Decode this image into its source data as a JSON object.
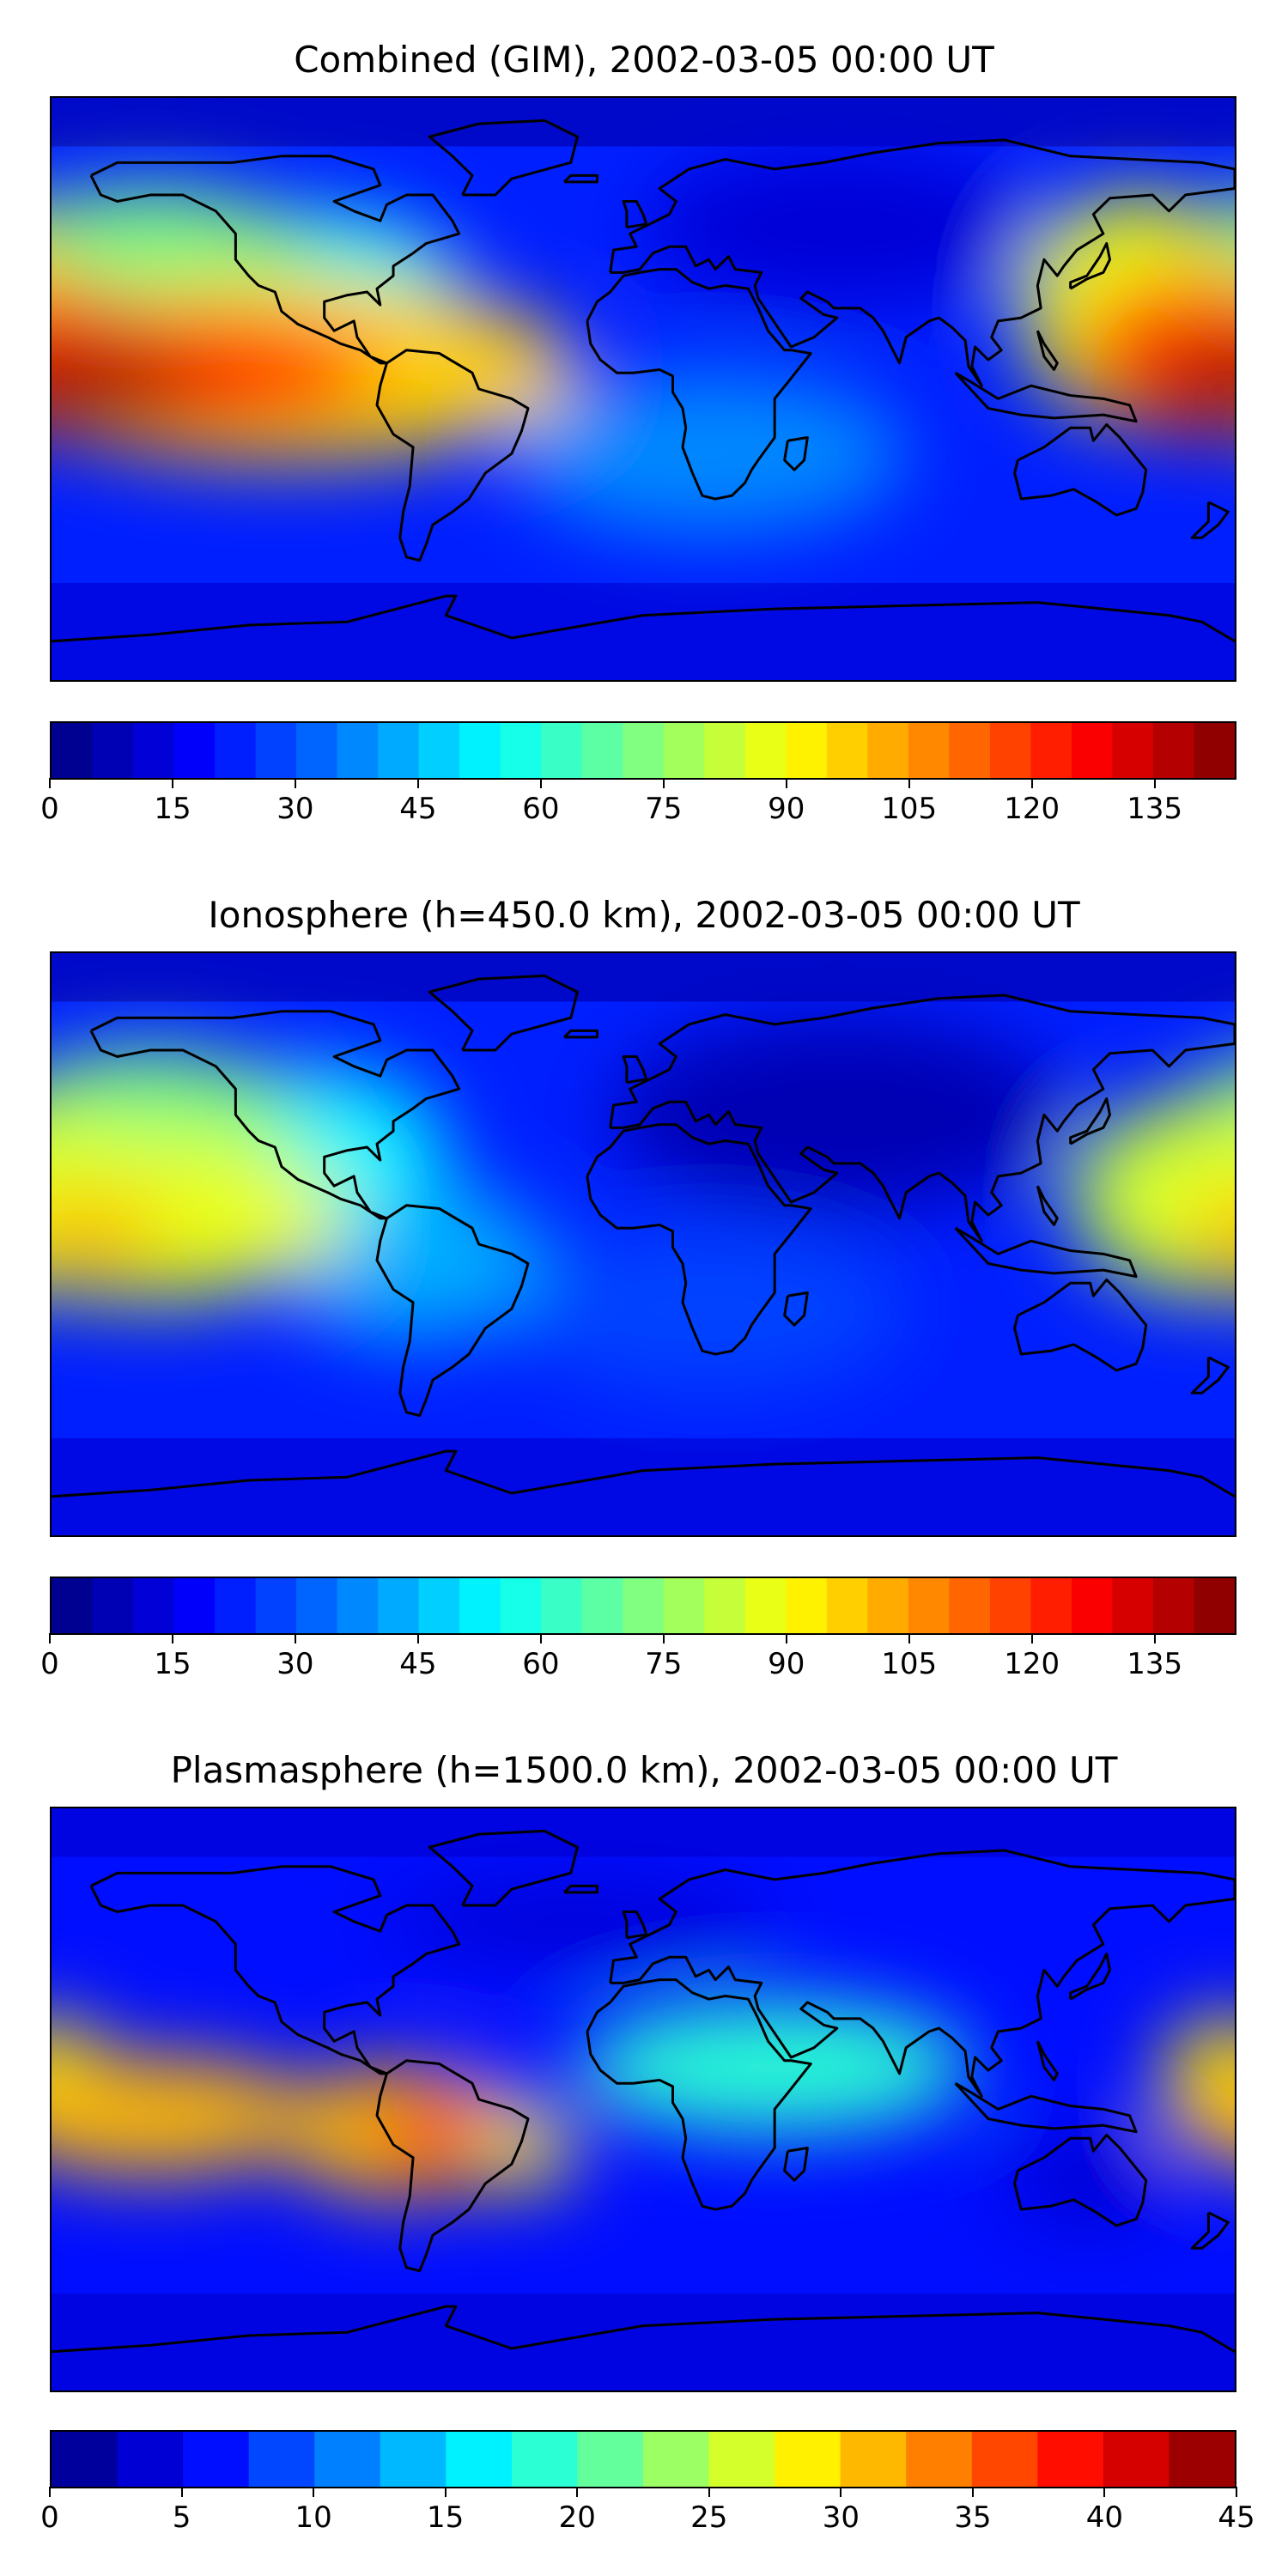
{
  "panels": [
    {
      "id": "combined",
      "title": "Combined (GIM), 2002-03-05 00:00 UT",
      "colorbar": {
        "min": 0,
        "max": 145,
        "levels": 29,
        "ticks": [
          "0",
          "15",
          "30",
          "45",
          "60",
          "75",
          "90",
          "105",
          "120",
          "135"
        ],
        "tick_values": [
          0,
          15,
          30,
          45,
          60,
          75,
          90,
          105,
          120,
          135
        ]
      },
      "field_blobs": [
        {
          "lon": -170,
          "lat": 3,
          "value": 140,
          "rx": 35,
          "ry": 10
        },
        {
          "lon": -150,
          "lat": 5,
          "value": 120,
          "rx": 70,
          "ry": 18
        },
        {
          "lon": -110,
          "lat": 6,
          "value": 95,
          "rx": 90,
          "ry": 28
        },
        {
          "lon": -150,
          "lat": 40,
          "value": 70,
          "rx": 50,
          "ry": 22
        },
        {
          "lon": 170,
          "lat": 12,
          "value": 110,
          "rx": 40,
          "ry": 25
        },
        {
          "lon": 150,
          "lat": 25,
          "value": 85,
          "rx": 35,
          "ry": 35
        },
        {
          "lon": -60,
          "lat": 5,
          "value": 55,
          "rx": 40,
          "ry": 20
        },
        {
          "lon": -100,
          "lat": 30,
          "value": 55,
          "rx": 45,
          "ry": 25
        },
        {
          "lon": 20,
          "lat": -20,
          "value": 35,
          "rx": 60,
          "ry": 25
        },
        {
          "lon": 60,
          "lat": 50,
          "value": 10,
          "rx": 60,
          "ry": 25
        }
      ]
    },
    {
      "id": "ionosphere",
      "title": "Ionosphere  (h=450.0 km), 2002-03-05 00:00 UT",
      "colorbar": {
        "min": 0,
        "max": 145,
        "levels": 29,
        "ticks": [
          "0",
          "15",
          "30",
          "45",
          "60",
          "75",
          "90",
          "105",
          "120",
          "135"
        ],
        "tick_values": [
          0,
          15,
          30,
          45,
          60,
          75,
          90,
          105,
          120,
          135
        ]
      },
      "field_blobs": [
        {
          "lon": -170,
          "lat": 3,
          "value": 100,
          "rx": 25,
          "ry": 10
        },
        {
          "lon": -150,
          "lat": 8,
          "value": 85,
          "rx": 60,
          "ry": 25
        },
        {
          "lon": -150,
          "lat": 40,
          "value": 70,
          "rx": 45,
          "ry": 20
        },
        {
          "lon": 170,
          "lat": 15,
          "value": 80,
          "rx": 40,
          "ry": 30
        },
        {
          "lon": -100,
          "lat": 30,
          "value": 50,
          "rx": 40,
          "ry": 25
        },
        {
          "lon": -70,
          "lat": -5,
          "value": 40,
          "rx": 40,
          "ry": 25
        },
        {
          "lon": 20,
          "lat": -20,
          "value": 25,
          "rx": 60,
          "ry": 25
        },
        {
          "lon": 60,
          "lat": 40,
          "value": 8,
          "rx": 70,
          "ry": 30
        }
      ]
    },
    {
      "id": "plasmasphere",
      "title": "Plasmasphere (h=1500.0 km), 2002-03-05 00:00 UT",
      "colorbar": {
        "min": 0,
        "max": 45,
        "levels": 18,
        "ticks": [
          "0",
          "5",
          "10",
          "15",
          "20",
          "25",
          "30",
          "35",
          "40",
          "45"
        ],
        "tick_values": [
          0,
          5,
          10,
          15,
          20,
          25,
          30,
          35,
          40,
          45
        ]
      },
      "field_blobs": [
        {
          "lon": -65,
          "lat": -10,
          "value": 39,
          "rx": 15,
          "ry": 12
        },
        {
          "lon": -75,
          "lat": -10,
          "value": 32,
          "rx": 35,
          "ry": 20
        },
        {
          "lon": -150,
          "lat": -5,
          "value": 30,
          "rx": 50,
          "ry": 18
        },
        {
          "lon": -40,
          "lat": -15,
          "value": 28,
          "rx": 20,
          "ry": 12
        },
        {
          "lon": 178,
          "lat": 5,
          "value": 28,
          "rx": 20,
          "ry": 20
        },
        {
          "lon": 40,
          "lat": 10,
          "value": 18,
          "rx": 60,
          "ry": 20
        },
        {
          "lon": 135,
          "lat": -25,
          "value": 3,
          "rx": 25,
          "ry": 15
        },
        {
          "lon": -20,
          "lat": 55,
          "value": 4,
          "rx": 60,
          "ry": 12
        },
        {
          "lon": -45,
          "lat": 2,
          "value": 5,
          "rx": 10,
          "ry": 8
        }
      ]
    }
  ],
  "map_extent": {
    "lon": [
      -180,
      180
    ],
    "lat": [
      -90,
      90
    ]
  },
  "colormap": "jet"
}
